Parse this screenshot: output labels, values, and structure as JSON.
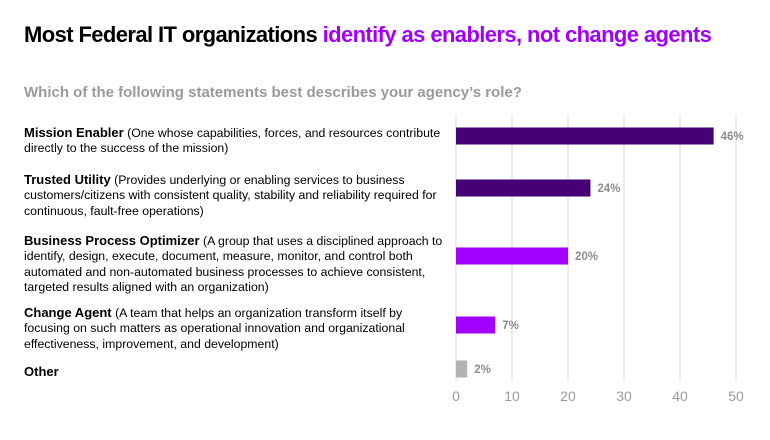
{
  "title": {
    "part1": "Most Federal IT organizations",
    "part2": "identify as enablers, not change agents"
  },
  "question": "Which of the following statements best describes your agency’s role?",
  "colors": {
    "dark_purple": "#460073",
    "bright_purple": "#a100ff",
    "gray": "#b3b3b3",
    "grid": "#d9d9d9"
  },
  "chart_data": {
    "type": "bar",
    "orientation": "horizontal",
    "xlim": [
      0,
      50
    ],
    "xticks": [
      0,
      10,
      20,
      30,
      40,
      50
    ],
    "grid": true,
    "categories": [
      {
        "name": "Mission Enabler",
        "description": "(One whose capabilities, forces, and resources contribute directly to the success of the mission)",
        "value": 46,
        "label": "46%",
        "color": "#460073"
      },
      {
        "name": "Trusted Utility",
        "description": "(Provides underlying or enabling services to business customers/citizens with consistent quality, stability and reliability required for continuous, fault-free operations)",
        "value": 24,
        "label": "24%",
        "color": "#460073"
      },
      {
        "name": "Business Process Optimizer",
        "description": "(A group that uses a disciplined approach to identify, design, execute, document, measure, monitor, and control both automated and non-automated business processes to achieve consistent, targeted results aligned with an organization)",
        "value": 20,
        "label": "20%",
        "color": "#a100ff"
      },
      {
        "name": "Change Agent",
        "description": "(A team that helps an organization transform itself by focusing on such matters as operational innovation and organizational effectiveness, improvement, and development)",
        "value": 7,
        "label": "7%",
        "color": "#a100ff"
      },
      {
        "name": "Other",
        "description": "",
        "value": 2,
        "label": "2%",
        "color": "#b3b3b3"
      }
    ]
  }
}
